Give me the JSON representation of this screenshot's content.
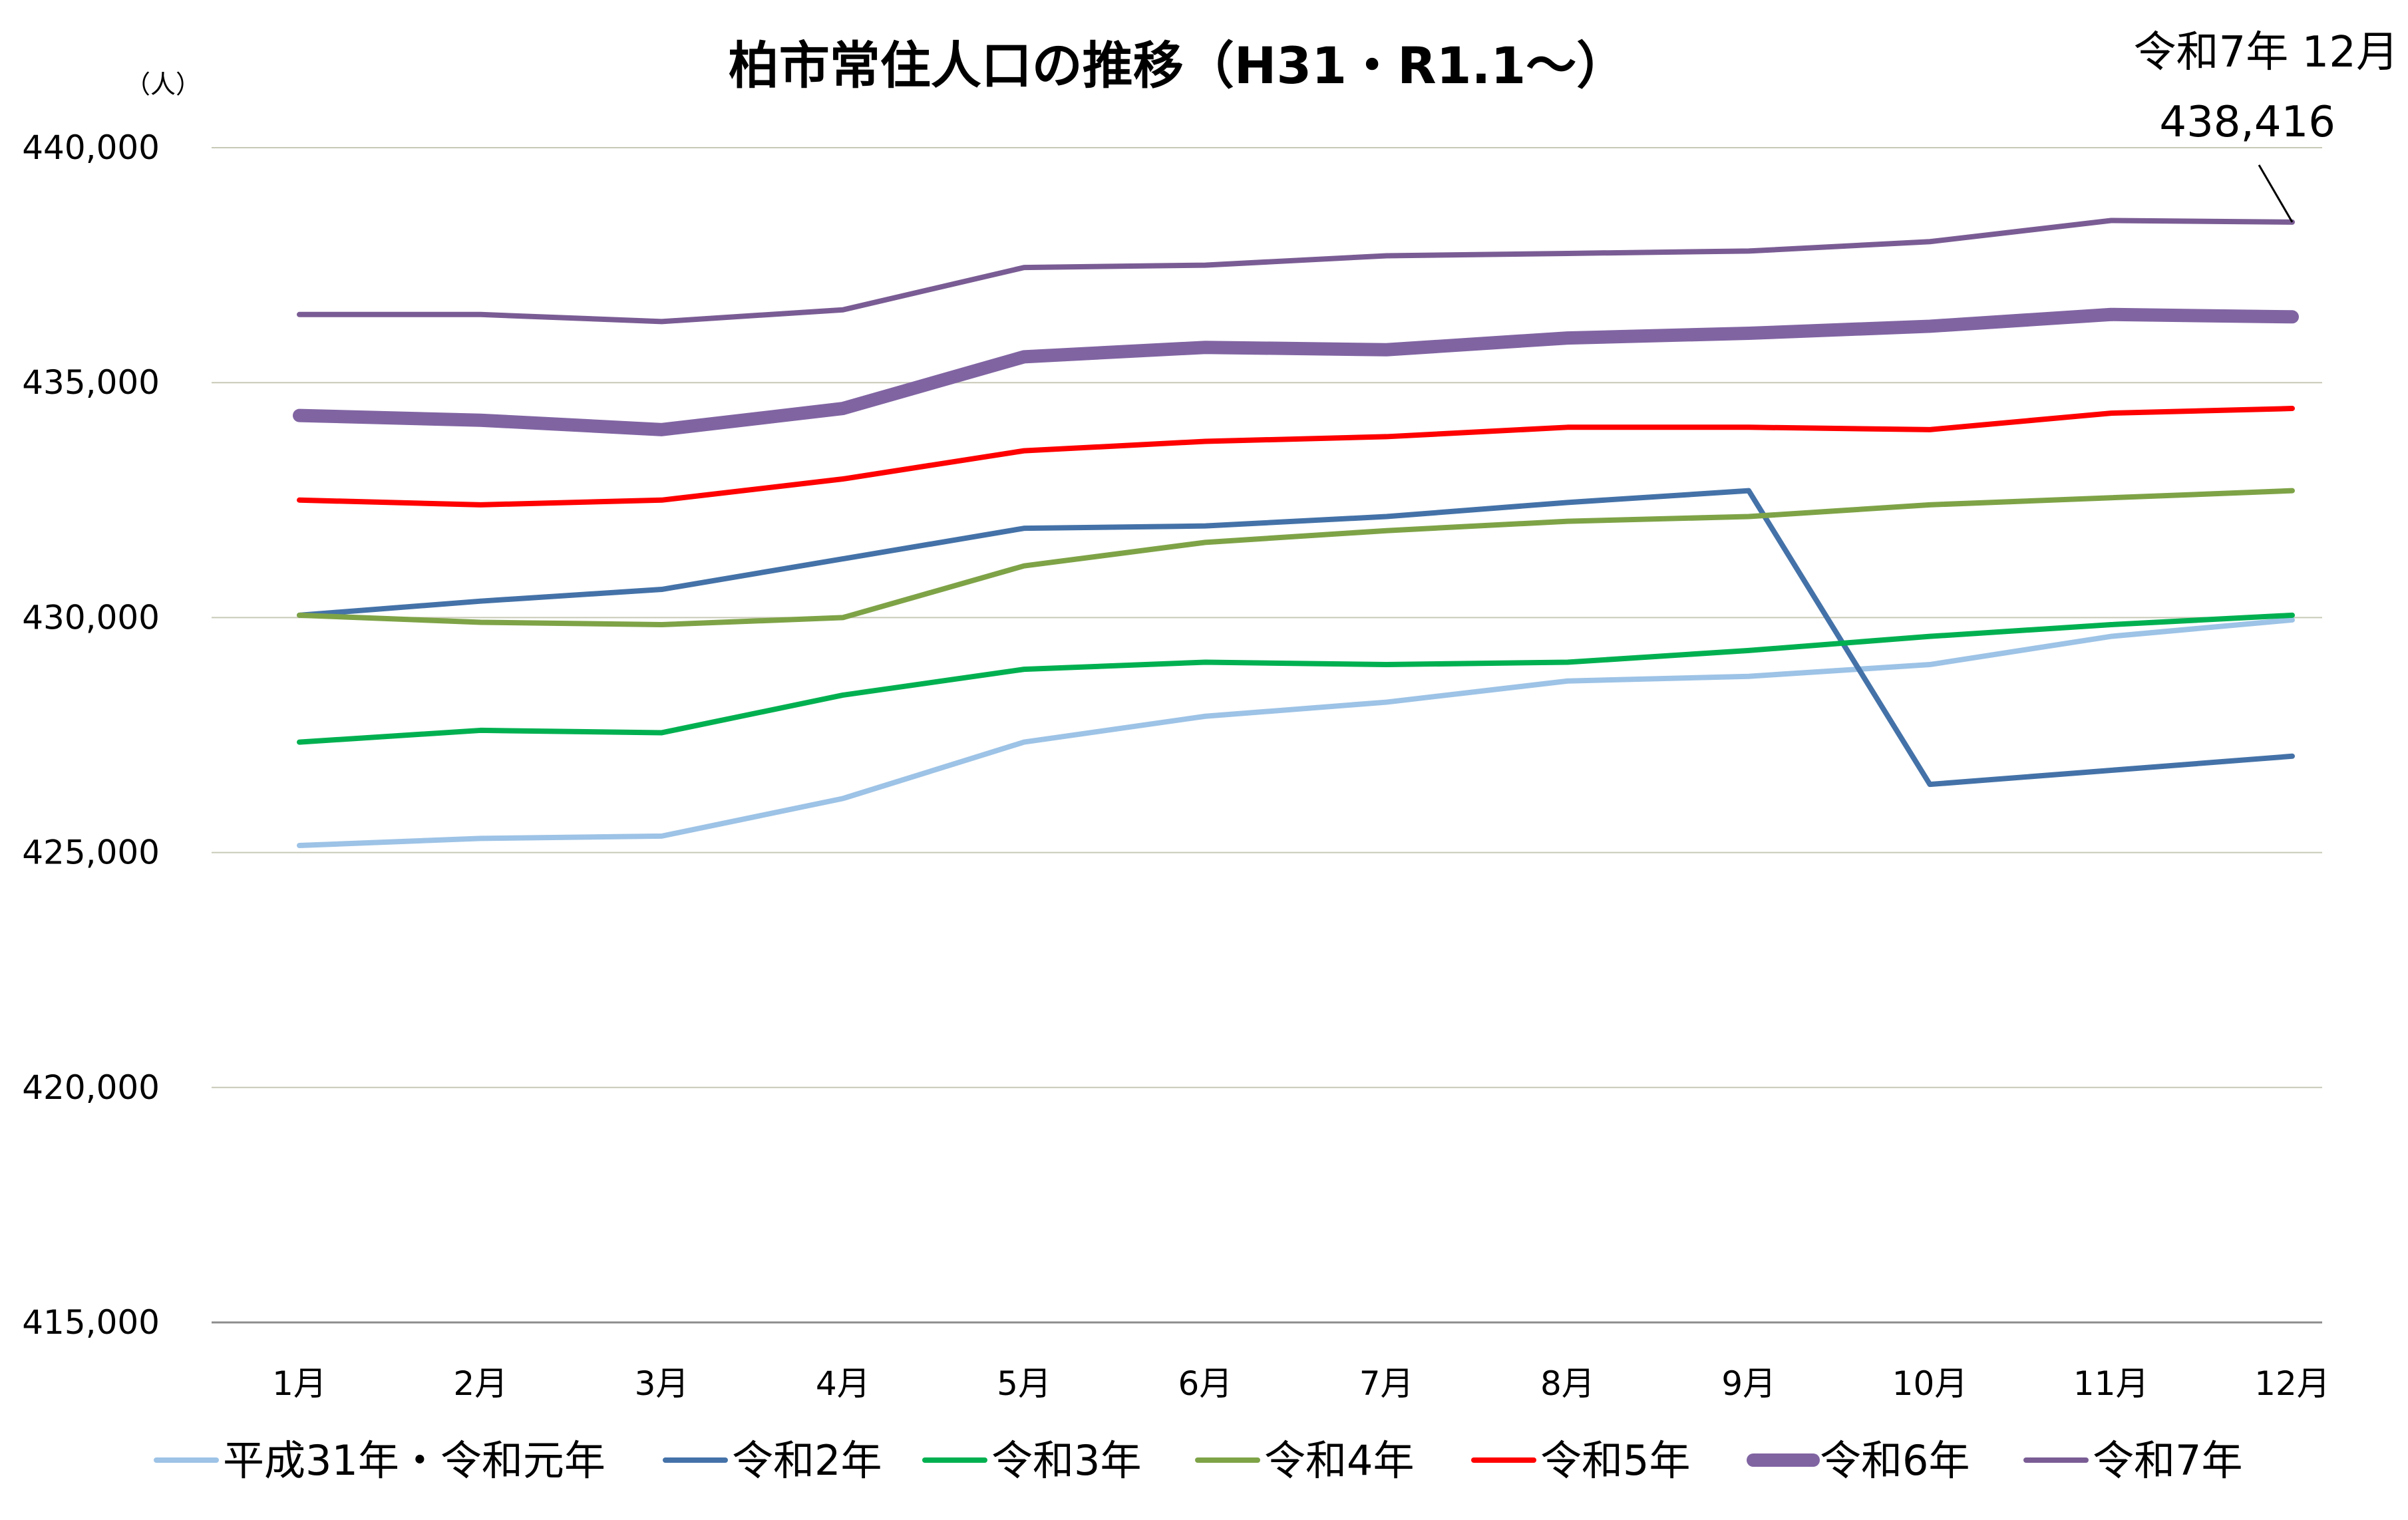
{
  "chart_data": {
    "type": "line",
    "title": "柏市常住人口の推移（H31・R1.1～）",
    "unit_label": "（人）",
    "xlabel": "",
    "ylabel": "",
    "categories": [
      "1月",
      "2月",
      "3月",
      "4月",
      "5月",
      "6月",
      "7月",
      "8月",
      "9月",
      "10月",
      "11月",
      "12月"
    ],
    "ylim": [
      415000,
      440000
    ],
    "yticks": [
      415000,
      420000,
      425000,
      430000,
      435000,
      440000
    ],
    "ytick_labels": [
      "415,000",
      "420,000",
      "425,000",
      "430,000",
      "435,000",
      "440,000"
    ],
    "grid": true,
    "legend_position": "bottom",
    "series": [
      {
        "name": "平成31年・令和元年",
        "color": "#9DC3E6",
        "weight": "normal",
        "values": [
          425150,
          425300,
          425350,
          426150,
          427350,
          427900,
          428200,
          428650,
          428750,
          429000,
          429600,
          429950
        ]
      },
      {
        "name": "令和2年",
        "color": "#4472A8",
        "weight": "normal",
        "values": [
          430050,
          430350,
          430600,
          431250,
          431900,
          431950,
          432150,
          432450,
          432700,
          426450,
          426750,
          427050
        ]
      },
      {
        "name": "令和3年",
        "color": "#00B050",
        "weight": "normal",
        "values": [
          427350,
          427600,
          427550,
          428350,
          428900,
          429050,
          429000,
          429050,
          429300,
          429600,
          429850,
          430050
        ]
      },
      {
        "name": "令和4年",
        "color": "#7EA347",
        "weight": "normal",
        "values": [
          430050,
          429900,
          429850,
          430000,
          431100,
          431600,
          431850,
          432050,
          432150,
          432400,
          432550,
          432700
        ]
      },
      {
        "name": "令和5年",
        "color": "#FF0000",
        "weight": "normal",
        "values": [
          432500,
          432400,
          432500,
          432950,
          433550,
          433750,
          433850,
          434050,
          434050,
          434000,
          434350,
          434450
        ]
      },
      {
        "name": "令和6年",
        "color": "#8064A2",
        "weight": "bold",
        "values": [
          434300,
          434200,
          434000,
          434450,
          435550,
          435750,
          435700,
          435950,
          436050,
          436200,
          436450,
          436400
        ]
      },
      {
        "name": "令和7年",
        "color": "#7A5C94",
        "weight": "normal",
        "values": [
          436450,
          436450,
          436300,
          436550,
          437450,
          437500,
          437700,
          437750,
          437800,
          438000,
          438450,
          438416
        ]
      }
    ],
    "annotation": {
      "line1": "令和7年 12月",
      "line2": "438,416",
      "series_index": 6,
      "point_index": 11
    }
  }
}
